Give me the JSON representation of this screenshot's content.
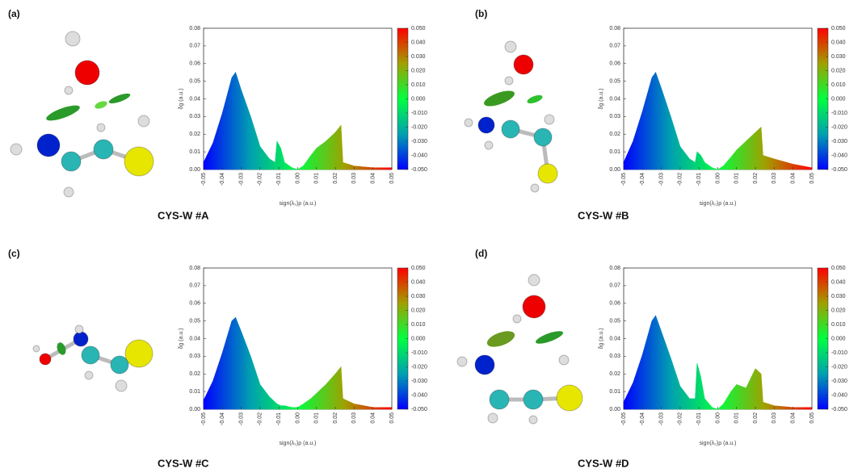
{
  "chart_data": [
    {
      "type": "area",
      "panel_label": "(a)",
      "caption": "CYS-W #A",
      "xlabel": "sign(λ₂)ρ (a.u.)",
      "ylabel": "δg (a.u.)",
      "x": [
        -0.05,
        -0.045,
        -0.04,
        -0.035,
        -0.033,
        -0.03,
        -0.025,
        -0.02,
        -0.015,
        -0.012,
        -0.011,
        -0.009,
        -0.007,
        -0.003,
        0,
        0.003,
        0.007,
        0.01,
        0.015,
        0.02,
        0.023,
        0.024,
        0.03,
        0.04,
        0.05
      ],
      "values": [
        0.004,
        0.015,
        0.032,
        0.052,
        0.055,
        0.045,
        0.03,
        0.013,
        0.006,
        0.004,
        0.016,
        0.012,
        0.004,
        0.001,
        0,
        0.002,
        0.008,
        0.012,
        0.016,
        0.021,
        0.025,
        0.004,
        0.002,
        0.001,
        0.001
      ],
      "xlim": [
        -0.05,
        0.05
      ],
      "ylim": [
        0,
        0.08
      ],
      "xticks": [
        -0.05,
        -0.04,
        -0.03,
        -0.02,
        -0.01,
        {
          "value": 0,
          "label": "0.00"
        },
        0.01,
        0.02,
        0.03,
        0.04,
        0.05
      ],
      "yticks": [
        {
          "value": 0,
          "label": "0.00"
        },
        0.01,
        0.02,
        0.03,
        0.04,
        0.05,
        0.06,
        0.07,
        0.08
      ],
      "colorbar": {
        "lim": [
          -0.05,
          0.05
        ],
        "colors": [
          "#0000ff",
          "#00a0b0",
          "#00ff40",
          "#a0a000",
          "#ff0000"
        ],
        "ticks": [
          {
            "value": 0.05,
            "label": "0.050"
          },
          {
            "value": 0.04,
            "label": "0.040"
          },
          {
            "value": 0.03,
            "label": "0.030"
          },
          {
            "value": 0.02,
            "label": "0.020"
          },
          {
            "value": 0.01,
            "label": "0.010"
          },
          {
            "value": 0,
            "label": "0.000"
          },
          {
            "value": -0.01,
            "label": "-0.010"
          },
          {
            "value": -0.02,
            "label": "-0.020"
          },
          {
            "value": -0.03,
            "label": "-0.030"
          },
          {
            "value": -0.04,
            "label": "-0.040"
          },
          {
            "value": -0.05,
            "label": "-0.050"
          }
        ]
      }
    },
    {
      "type": "area",
      "panel_label": "(b)",
      "caption": "CYS-W #B",
      "xlabel": "sign(λ₂)ρ (a.u.)",
      "ylabel": "δg (a.u.)",
      "x": [
        -0.05,
        -0.045,
        -0.04,
        -0.035,
        -0.033,
        -0.03,
        -0.025,
        -0.02,
        -0.015,
        -0.012,
        -0.011,
        -0.009,
        -0.007,
        -0.003,
        0,
        0.003,
        0.007,
        0.01,
        0.015,
        0.02,
        0.023,
        0.024,
        0.03,
        0.04,
        0.05
      ],
      "values": [
        0.004,
        0.016,
        0.033,
        0.052,
        0.055,
        0.046,
        0.03,
        0.013,
        0.006,
        0.004,
        0.01,
        0.008,
        0.004,
        0.001,
        0,
        0.002,
        0.007,
        0.011,
        0.016,
        0.021,
        0.024,
        0.008,
        0.006,
        0.003,
        0.001
      ],
      "xlim": [
        -0.05,
        0.05
      ],
      "ylim": [
        0,
        0.08
      ],
      "xticks": [
        -0.05,
        -0.04,
        -0.03,
        -0.02,
        -0.01,
        {
          "value": 0,
          "label": "0.00"
        },
        0.01,
        0.02,
        0.03,
        0.04,
        0.05
      ],
      "yticks": [
        {
          "value": 0,
          "label": "0.00"
        },
        0.01,
        0.02,
        0.03,
        0.04,
        0.05,
        0.06,
        0.07,
        0.08
      ],
      "colorbar": {
        "lim": [
          -0.05,
          0.05
        ],
        "colors": [
          "#0000ff",
          "#00a0b0",
          "#00ff40",
          "#a0a000",
          "#ff0000"
        ],
        "ticks": [
          {
            "value": 0.05,
            "label": "0.050"
          },
          {
            "value": 0.04,
            "label": "0.040"
          },
          {
            "value": 0.03,
            "label": "0.030"
          },
          {
            "value": 0.02,
            "label": "0.020"
          },
          {
            "value": 0.01,
            "label": "0.010"
          },
          {
            "value": 0,
            "label": "0.000"
          },
          {
            "value": -0.01,
            "label": "-0.010"
          },
          {
            "value": -0.02,
            "label": "-0.020"
          },
          {
            "value": -0.03,
            "label": "-0.030"
          },
          {
            "value": -0.04,
            "label": "-0.040"
          },
          {
            "value": -0.05,
            "label": "-0.050"
          }
        ]
      }
    },
    {
      "type": "area",
      "panel_label": "(c)",
      "caption": "CYS-W #C",
      "xlabel": "sign(λ₂)ρ (a.u.)",
      "ylabel": "δg (a.u.)",
      "x": [
        -0.05,
        -0.045,
        -0.04,
        -0.035,
        -0.033,
        -0.03,
        -0.025,
        -0.02,
        -0.015,
        -0.012,
        -0.011,
        -0.009,
        -0.007,
        -0.003,
        0,
        0.003,
        0.007,
        0.01,
        0.015,
        0.02,
        0.023,
        0.024,
        0.03,
        0.04,
        0.05
      ],
      "values": [
        0.005,
        0.016,
        0.032,
        0.05,
        0.052,
        0.044,
        0.03,
        0.014,
        0.007,
        0.004,
        0.003,
        0.002,
        0.002,
        0.001,
        0.001,
        0.003,
        0.006,
        0.009,
        0.014,
        0.02,
        0.024,
        0.006,
        0.003,
        0.001,
        0.001
      ],
      "xlim": [
        -0.05,
        0.05
      ],
      "ylim": [
        0,
        0.08
      ],
      "xticks": [
        -0.05,
        -0.04,
        -0.03,
        -0.02,
        -0.01,
        {
          "value": 0,
          "label": "0.00"
        },
        0.01,
        0.02,
        0.03,
        0.04,
        0.05
      ],
      "yticks": [
        {
          "value": 0,
          "label": "0.00"
        },
        0.01,
        0.02,
        0.03,
        0.04,
        0.05,
        0.06,
        0.07,
        0.08
      ],
      "colorbar": {
        "lim": [
          -0.05,
          0.05
        ],
        "colors": [
          "#0000ff",
          "#00a0b0",
          "#00ff40",
          "#a0a000",
          "#ff0000"
        ],
        "ticks": [
          {
            "value": 0.05,
            "label": "0.050"
          },
          {
            "value": 0.04,
            "label": "0.040"
          },
          {
            "value": 0.03,
            "label": "0.030"
          },
          {
            "value": 0.02,
            "label": "0.020"
          },
          {
            "value": 0.01,
            "label": "0.010"
          },
          {
            "value": 0,
            "label": "0.000"
          },
          {
            "value": -0.01,
            "label": "-0.010"
          },
          {
            "value": -0.02,
            "label": "-0.020"
          },
          {
            "value": -0.03,
            "label": "-0.030"
          },
          {
            "value": -0.04,
            "label": "-0.040"
          },
          {
            "value": -0.05,
            "label": "-0.050"
          }
        ]
      }
    },
    {
      "type": "area",
      "panel_label": "(d)",
      "caption": "CYS-W #D",
      "xlabel": "sign(λ₂)ρ (a.u.)",
      "ylabel": "δg (a.u.)",
      "x": [
        -0.05,
        -0.045,
        -0.04,
        -0.035,
        -0.033,
        -0.03,
        -0.025,
        -0.02,
        -0.015,
        -0.012,
        -0.011,
        -0.009,
        -0.007,
        -0.003,
        0,
        0.003,
        0.007,
        0.01,
        0.015,
        0.02,
        0.023,
        0.024,
        0.03,
        0.04,
        0.05
      ],
      "values": [
        0.004,
        0.015,
        0.031,
        0.05,
        0.053,
        0.044,
        0.029,
        0.013,
        0.006,
        0.006,
        0.026,
        0.018,
        0.006,
        0.001,
        0,
        0.003,
        0.01,
        0.014,
        0.012,
        0.023,
        0.02,
        0.004,
        0.002,
        0.001,
        0.001
      ],
      "xlim": [
        -0.05,
        0.05
      ],
      "ylim": [
        0,
        0.08
      ],
      "xticks": [
        -0.05,
        -0.04,
        -0.03,
        -0.02,
        -0.01,
        {
          "value": 0,
          "label": "0.00"
        },
        0.01,
        0.02,
        0.03,
        0.04,
        0.05
      ],
      "yticks": [
        {
          "value": 0,
          "label": "0.00"
        },
        0.01,
        0.02,
        0.03,
        0.04,
        0.05,
        0.06,
        0.07,
        0.08
      ],
      "colorbar": {
        "lim": [
          -0.05,
          0.05
        ],
        "colors": [
          "#0000ff",
          "#00a0b0",
          "#00ff40",
          "#a0a000",
          "#ff0000"
        ],
        "ticks": [
          {
            "value": 0.05,
            "label": "0.050"
          },
          {
            "value": 0.04,
            "label": "0.040"
          },
          {
            "value": 0.03,
            "label": "0.030"
          },
          {
            "value": 0.02,
            "label": "0.020"
          },
          {
            "value": 0.01,
            "label": "0.010"
          },
          {
            "value": 0,
            "label": "0.000"
          },
          {
            "value": -0.01,
            "label": "-0.010"
          },
          {
            "value": -0.02,
            "label": "-0.020"
          },
          {
            "value": -0.03,
            "label": "-0.030"
          },
          {
            "value": -0.04,
            "label": "-0.040"
          },
          {
            "value": -0.05,
            "label": "-0.050"
          }
        ]
      }
    }
  ]
}
